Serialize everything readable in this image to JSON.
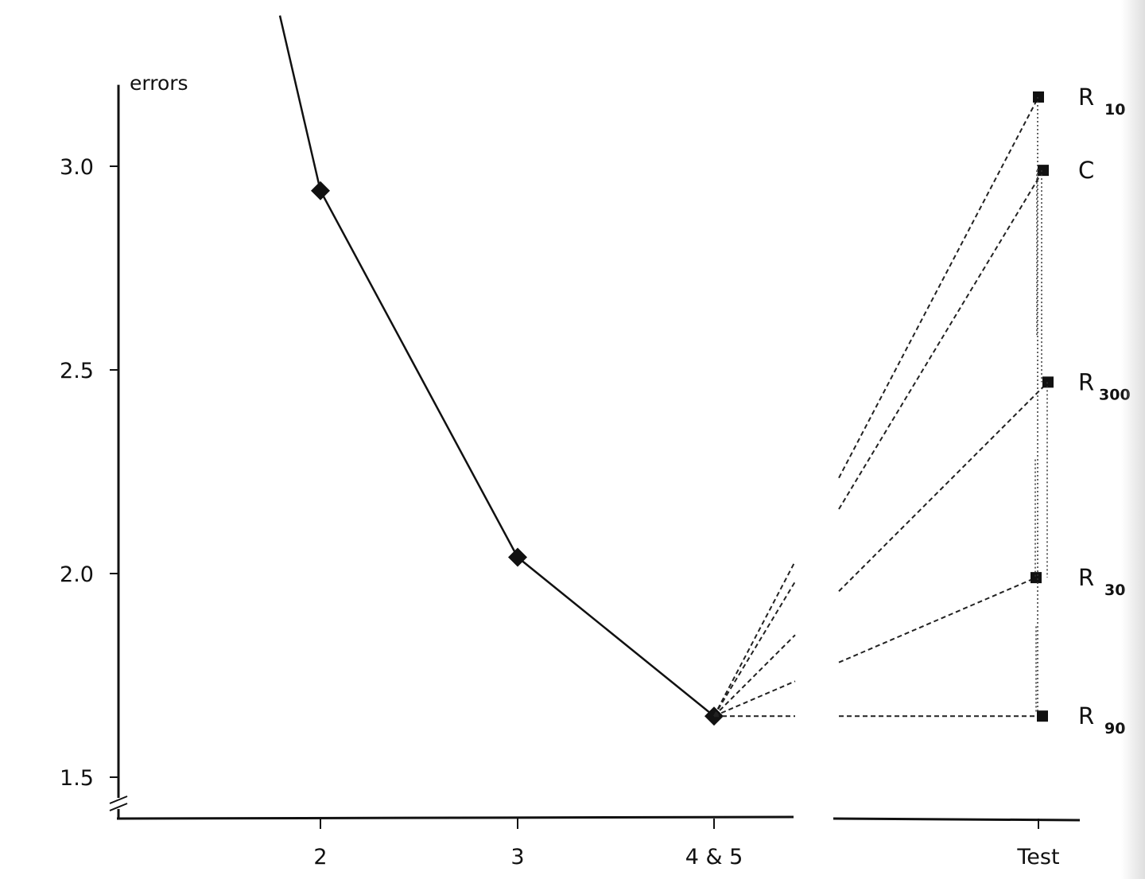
{
  "chart_data": {
    "type": "line",
    "ylabel": "errors",
    "ylim": [
      1.5,
      3.2
    ],
    "yticks": [
      {
        "value": 1.5,
        "label": "1.5"
      },
      {
        "value": 2.0,
        "label": "2.0"
      },
      {
        "value": 2.5,
        "label": "2.5"
      },
      {
        "value": 3.0,
        "label": "3.0"
      }
    ],
    "xticks": [
      {
        "key": "2",
        "label": "2"
      },
      {
        "key": "3",
        "label": "3"
      },
      {
        "key": "4&5",
        "label": "4 & 5"
      },
      {
        "key": "test",
        "label": "Test"
      }
    ],
    "axis_break": true,
    "training_series": {
      "marker": "diamond",
      "points": [
        {
          "x": "1",
          "y": 3.37
        },
        {
          "x": "2",
          "y": 2.94
        },
        {
          "x": "3",
          "y": 2.04
        },
        {
          "x": "4&5",
          "y": 1.65
        }
      ]
    },
    "test_groups": [
      {
        "label": "R",
        "subscript": "10",
        "y": 3.17
      },
      {
        "label": "C",
        "subscript": "",
        "y": 2.99
      },
      {
        "label": "R",
        "subscript": "300",
        "y": 2.47
      },
      {
        "label": "R",
        "subscript": "30",
        "y": 1.99
      },
      {
        "label": "R",
        "subscript": "90",
        "y": 1.65
      }
    ],
    "significance_brackets": [
      {
        "from": 2.99,
        "to": 2.58
      },
      {
        "from": 2.99,
        "to": 2.47
      },
      {
        "from": 2.28,
        "to": 1.99
      },
      {
        "from": 2.47,
        "to": 1.99
      },
      {
        "from": 1.87,
        "to": 1.66
      },
      {
        "from": 3.17,
        "to": 1.66
      }
    ]
  }
}
